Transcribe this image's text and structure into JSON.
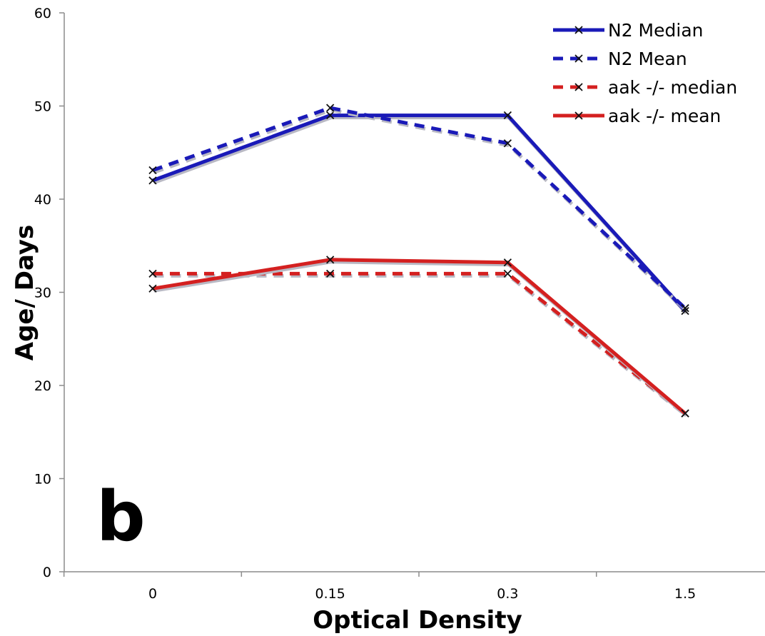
{
  "chart_data": {
    "type": "line",
    "panel_label": "b",
    "xlabel": "Optical Density",
    "ylabel": "Age/ Days",
    "categories": [
      "0",
      "0.15",
      "0.3",
      "1.5"
    ],
    "ylim": [
      0,
      60
    ],
    "yticks": [
      0,
      10,
      20,
      30,
      40,
      50,
      60
    ],
    "grid": false,
    "legend_position": "top-right",
    "series": [
      {
        "name": "N2 Median",
        "values": [
          42,
          49,
          49,
          28
        ],
        "color": "#1a1ab8",
        "style": "solid",
        "marker": "x"
      },
      {
        "name": "N2 Mean",
        "values": [
          43.1,
          49.8,
          46,
          28.3
        ],
        "color": "#1a1ab8",
        "style": "dashed",
        "marker": "x"
      },
      {
        "name": "aak -/- median",
        "values": [
          32,
          32,
          32,
          17
        ],
        "color": "#d42020",
        "style": "dashed",
        "marker": "x"
      },
      {
        "name": "aak -/- mean",
        "values": [
          30.4,
          33.5,
          33.2,
          17
        ],
        "color": "#d42020",
        "style": "solid",
        "marker": "x"
      }
    ]
  }
}
